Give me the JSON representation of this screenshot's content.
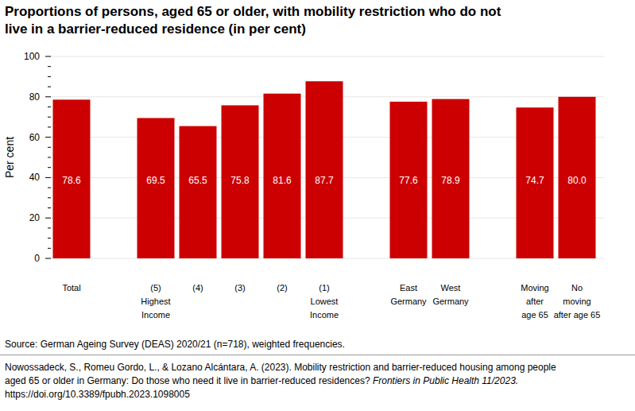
{
  "chart_data": {
    "type": "bar",
    "title": "Proportions of persons, aged 65 or older, with mobility restriction who do not\nlive in a barrier-reduced residence (in per cent)",
    "y_label": "Per cent",
    "categories": [
      "Total",
      null,
      "(5)\nHighest\nIncome",
      "(4)",
      "(3)",
      "(2)",
      "(1)\nLowest\nIncome",
      null,
      "East\nGermany",
      "West\nGermany",
      null,
      "Moving\nafter\nage 65",
      "No\nmoving\nafter age 65"
    ],
    "values": [
      78.6,
      null,
      69.5,
      65.5,
      75.8,
      81.6,
      87.7,
      null,
      77.6,
      78.9,
      null,
      74.7,
      80.0
    ],
    "value_labels": [
      "78.6",
      null,
      "69.5",
      "65.5",
      "75.8",
      "81.6",
      "87.7",
      null,
      "77.6",
      "78.9",
      null,
      "74.7",
      "80.0"
    ],
    "color": "#cc0000",
    "ylim": [
      0,
      100
    ],
    "yticks": [
      0,
      20,
      40,
      60,
      80,
      100
    ],
    "grid": true,
    "data_labels": true,
    "source": "Source: German Ageing Survey (DEAS) 2020/21 (n=718), weighted frequencies.",
    "citation": {
      "authors_title": "Nowossadeck, S., Romeu Gordo, L., & Lozano Alcántara, A. (2023). Mobility restriction and barrier-reduced housing among people\naged 65 or older in Germany: Do those who need it live in barrier-reduced residences? ",
      "journal": "Frontiers in Public Health 11/2023.",
      "doi": "https://doi.org/10.3389/fpubh.2023.1098005"
    }
  }
}
